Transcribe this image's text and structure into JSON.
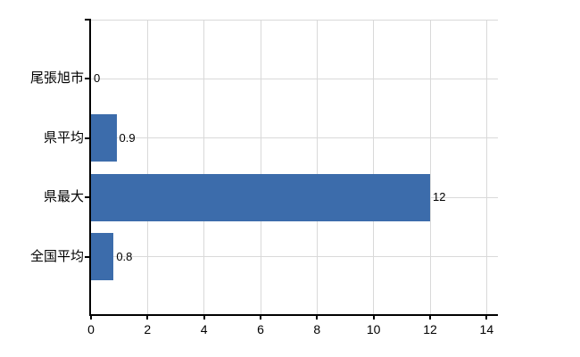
{
  "chart_data": {
    "type": "bar",
    "orientation": "horizontal",
    "title": "",
    "xlabel": "",
    "ylabel": "",
    "categories": [
      "尾張旭市",
      "県平均",
      "県最大",
      "全国平均"
    ],
    "values": [
      0,
      0.9,
      12,
      0.8
    ],
    "value_labels": [
      "0",
      "0.9",
      "12",
      "0.8"
    ],
    "xticks": [
      0,
      2,
      4,
      6,
      8,
      10,
      12,
      14
    ],
    "xtick_labels": [
      "0",
      "2",
      "4",
      "6",
      "8",
      "10",
      "12",
      "14"
    ],
    "xlim": [
      0,
      14.4
    ],
    "grid": true,
    "legend": false,
    "colors": {
      "bar": "#3c6cab",
      "grid": "#d9d9d9",
      "axis": "#000000",
      "text": "#000000",
      "background": "#ffffff"
    }
  }
}
